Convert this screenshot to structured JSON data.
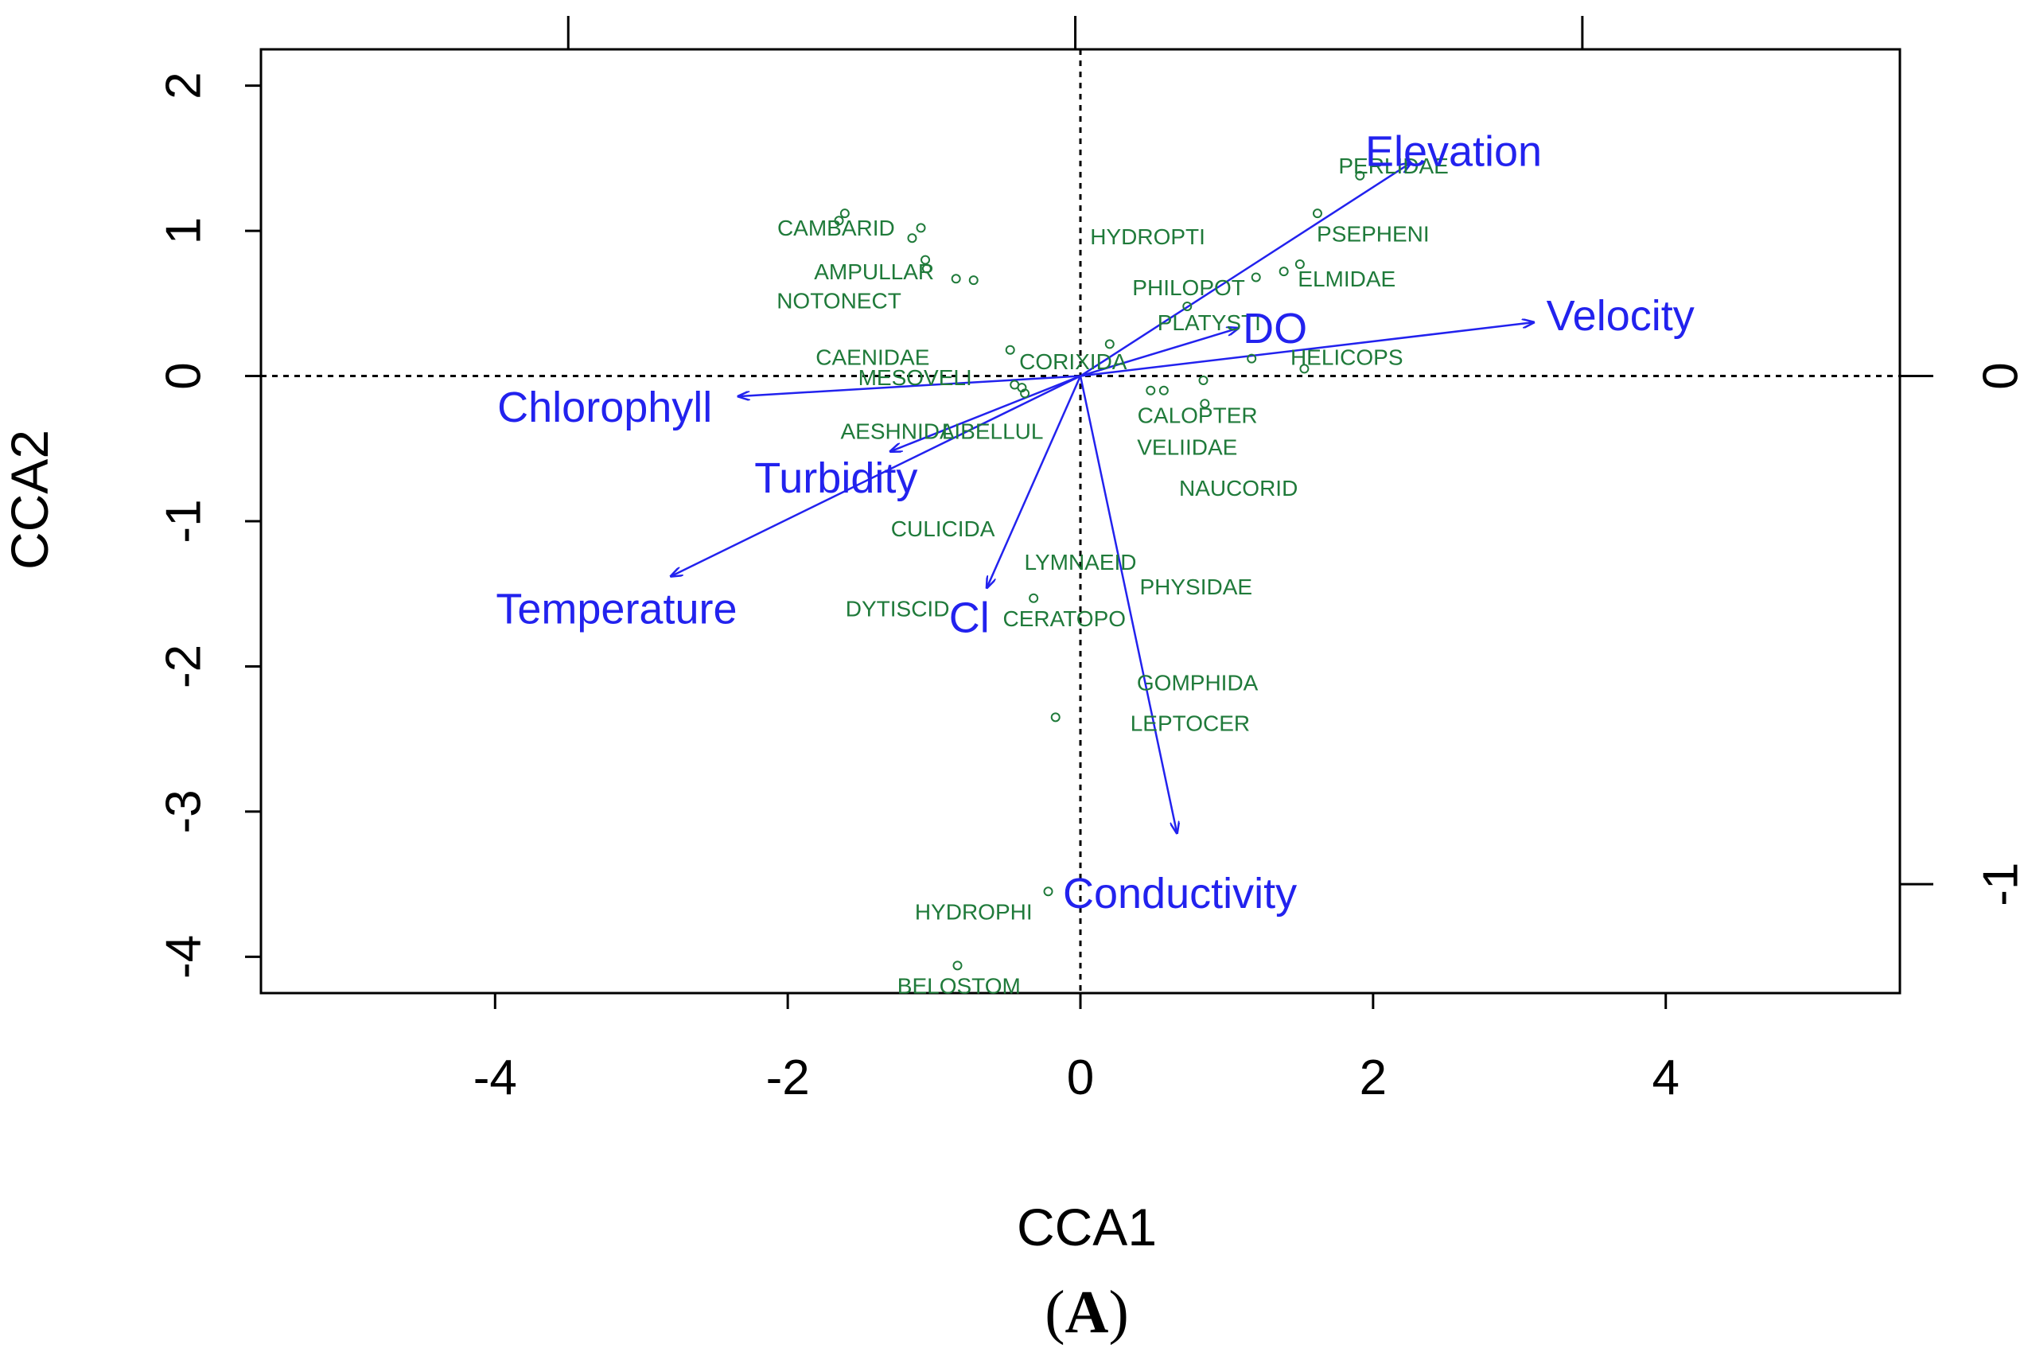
{
  "chart_data": {
    "type": "scatter",
    "subtype": "CCA biplot",
    "xlabel": "CCA1",
    "ylabel": "CCA2",
    "xlim": [
      -5.6,
      5.6
    ],
    "ylim": [
      -4.25,
      2.25
    ],
    "x_ticks": [
      "-4",
      "-2",
      "0",
      "2",
      "4"
    ],
    "x_tick_values": [
      -4,
      -2,
      0,
      2,
      4
    ],
    "y_ticks": [
      "-4",
      "-3",
      "-2",
      "-1",
      "0",
      "1",
      "2"
    ],
    "y_tick_values": [
      -4,
      -3,
      -2,
      -1,
      0,
      1,
      2
    ],
    "top_ticks": [
      -3.5,
      -0.035,
      3.43
    ],
    "right_axis": {
      "ticks": [
        "0",
        "-1"
      ],
      "tick_values": [
        0,
        -1
      ],
      "scale": 3.5
    },
    "caption": {
      "open": "(",
      "letter": "A",
      "close": ")"
    },
    "species_points": [
      {
        "x": -1.61,
        "y": 1.12
      },
      {
        "x": -1.65,
        "y": 1.07
      },
      {
        "x": -1.09,
        "y": 1.02
      },
      {
        "x": -1.15,
        "y": 0.95
      },
      {
        "x": -1.06,
        "y": 0.8
      },
      {
        "x": -0.85,
        "y": 0.67
      },
      {
        "x": -0.73,
        "y": 0.66
      },
      {
        "x": -1.05,
        "y": 0.74
      },
      {
        "x": -0.48,
        "y": 0.18
      },
      {
        "x": -0.4,
        "y": -0.08
      },
      {
        "x": -0.45,
        "y": -0.06
      },
      {
        "x": -0.38,
        "y": -0.12
      },
      {
        "x": 0.2,
        "y": 0.22
      },
      {
        "x": 0.73,
        "y": 0.48
      },
      {
        "x": 1.2,
        "y": 0.68
      },
      {
        "x": 1.39,
        "y": 0.72
      },
      {
        "x": 1.5,
        "y": 0.77
      },
      {
        "x": 1.62,
        "y": 1.12
      },
      {
        "x": 1.91,
        "y": 1.38
      },
      {
        "x": 1.17,
        "y": 0.12
      },
      {
        "x": 1.53,
        "y": 0.05
      },
      {
        "x": 0.48,
        "y": -0.1
      },
      {
        "x": 0.57,
        "y": -0.1
      },
      {
        "x": 0.84,
        "y": -0.03
      },
      {
        "x": 0.85,
        "y": -0.19
      },
      {
        "x": -0.32,
        "y": -1.53
      },
      {
        "x": -0.17,
        "y": -2.35
      },
      {
        "x": -0.22,
        "y": -3.55
      },
      {
        "x": -0.84,
        "y": -4.06
      }
    ],
    "species_labels": [
      {
        "text": "CAMBARID",
        "x": -1.67,
        "y": 1.02
      },
      {
        "text": "AMPULLAR",
        "x": -1.41,
        "y": 0.72
      },
      {
        "text": "NOTONECT",
        "x": -1.65,
        "y": 0.52
      },
      {
        "text": "HYDROPTI",
        "x": 0.46,
        "y": 0.96
      },
      {
        "text": "PERLIDAE",
        "x": 2.14,
        "y": 1.45
      },
      {
        "text": "PSEPHENI",
        "x": 2.0,
        "y": 0.98
      },
      {
        "text": "ELMIDAE",
        "x": 1.82,
        "y": 0.67
      },
      {
        "text": "PHILOPOT",
        "x": 0.74,
        "y": 0.61
      },
      {
        "text": "PLATYSTI",
        "x": 0.88,
        "y": 0.37
      },
      {
        "text": "HELICOPS",
        "x": 1.82,
        "y": 0.13
      },
      {
        "text": "CAENIDAE",
        "x": -1.42,
        "y": 0.13
      },
      {
        "text": "CORIXIDA",
        "x": -0.05,
        "y": 0.1
      },
      {
        "text": "MESOVELI",
        "x": -1.13,
        "y": -0.01
      },
      {
        "text": "AESHNIDA",
        "x": -1.25,
        "y": -0.38
      },
      {
        "text": "LIBELLUL",
        "x": -0.6,
        "y": -0.38
      },
      {
        "text": "CALOPTER",
        "x": 0.8,
        "y": -0.27
      },
      {
        "text": "VELIIDAE",
        "x": 0.73,
        "y": -0.49
      },
      {
        "text": "NAUCORID",
        "x": 1.08,
        "y": -0.77
      },
      {
        "text": "CULICIDA",
        "x": -0.94,
        "y": -1.05
      },
      {
        "text": "LYMNAEID",
        "x": 0.0,
        "y": -1.28
      },
      {
        "text": "PHYSIDAE",
        "x": 0.79,
        "y": -1.45
      },
      {
        "text": "DYTISCID",
        "x": -1.25,
        "y": -1.6
      },
      {
        "text": "CERATOPO",
        "x": -0.11,
        "y": -1.67
      },
      {
        "text": "GOMPHIDA",
        "x": 0.8,
        "y": -2.11
      },
      {
        "text": "LEPTOCER",
        "x": 0.75,
        "y": -2.39
      },
      {
        "text": "HYDROPHI",
        "x": -0.73,
        "y": -3.69
      },
      {
        "text": "BELOSTOM",
        "x": -0.83,
        "y": -4.2
      }
    ],
    "environmental_vectors": [
      {
        "name": "Elevation",
        "x": 2.26,
        "y": 1.47,
        "label_x": 2.55,
        "label_y": 1.55
      },
      {
        "name": "Velocity",
        "x": 3.1,
        "y": 0.37,
        "label_x": 3.69,
        "label_y": 0.42
      },
      {
        "name": "DO",
        "x": 1.08,
        "y": 0.33,
        "label_x": 1.33,
        "label_y": 0.33
      },
      {
        "name": "Chlorophyll",
        "x": -2.34,
        "y": -0.14,
        "label_x": -3.25,
        "label_y": -0.21
      },
      {
        "name": "Turbidity",
        "x": -1.3,
        "y": -0.52,
        "label_x": -1.67,
        "label_y": -0.7
      },
      {
        "name": "Temperature",
        "x": -2.8,
        "y": -1.38,
        "label_x": -3.17,
        "label_y": -1.6
      },
      {
        "name": "Cl",
        "x": -0.64,
        "y": -1.46,
        "label_x": -0.76,
        "label_y": -1.66
      },
      {
        "name": "Conductivity",
        "x": 0.66,
        "y": -3.15,
        "label_x": 0.68,
        "label_y": -3.56
      }
    ],
    "colors": {
      "vectors": "#2222ee",
      "species": "#1f7a3a",
      "axes": "#000000"
    }
  }
}
